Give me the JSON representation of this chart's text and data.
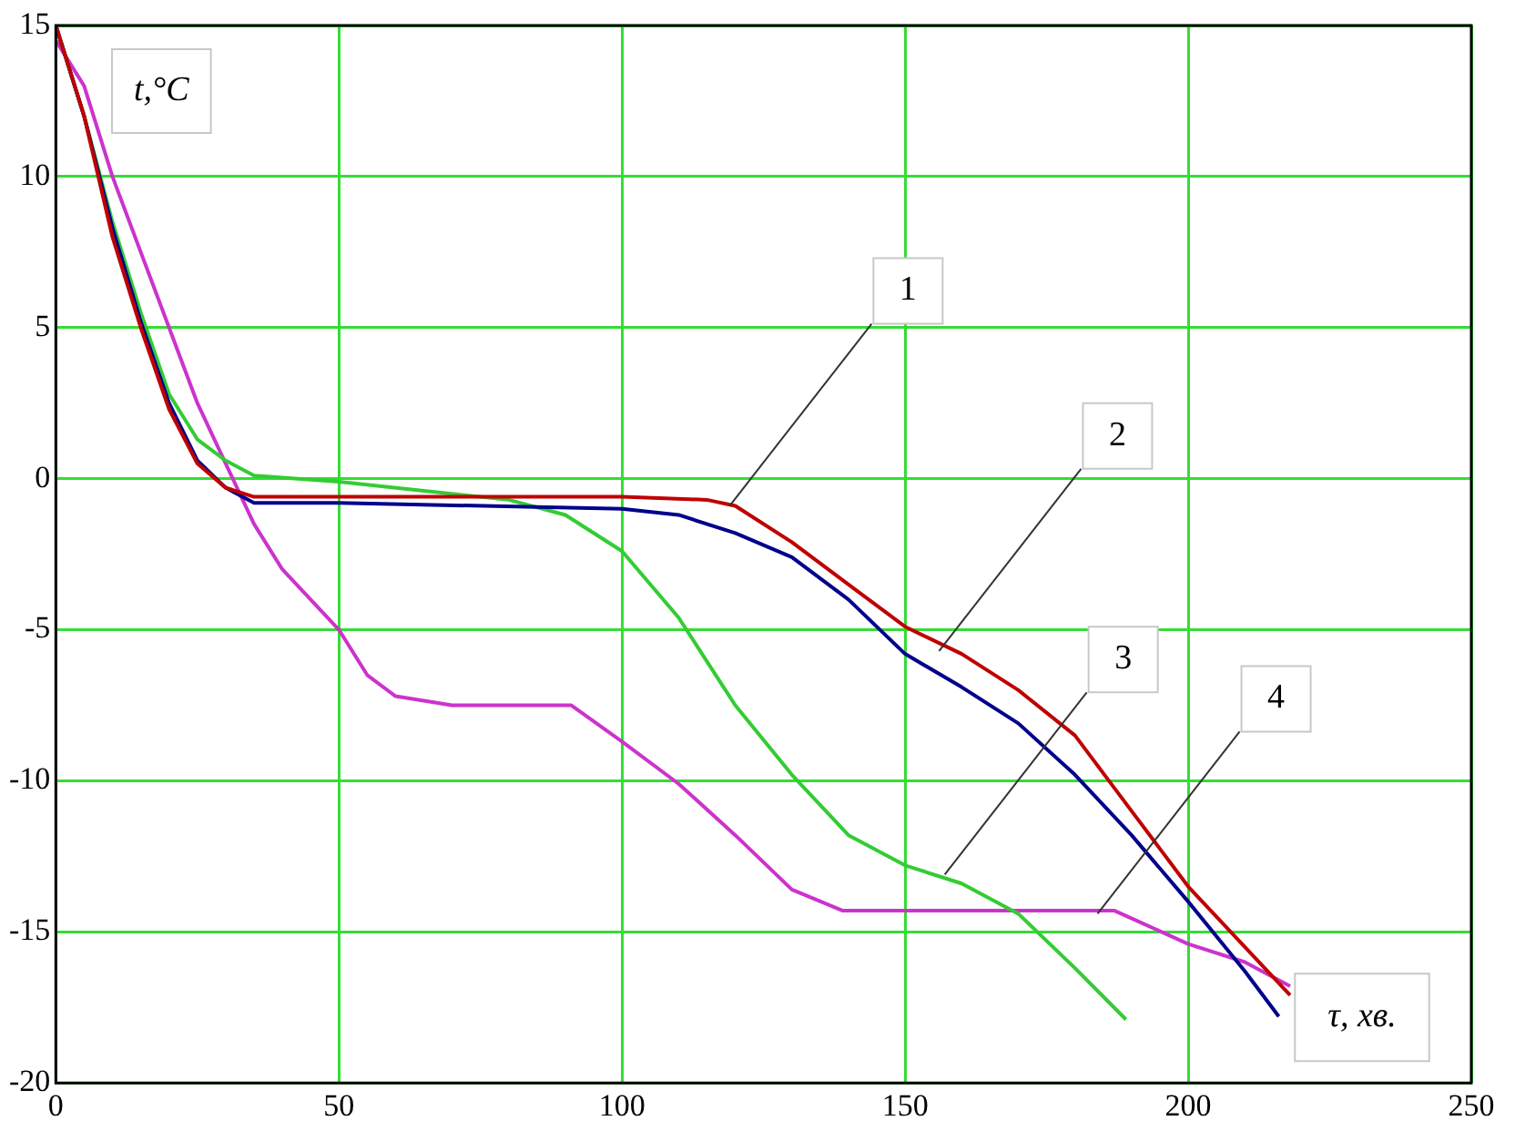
{
  "chart_data": {
    "type": "line",
    "xlabel": "τ, хв.",
    "ylabel": "t,°C",
    "xlim": [
      0,
      250
    ],
    "ylim": [
      -20,
      15
    ],
    "xticks": [
      0,
      50,
      100,
      150,
      200,
      250
    ],
    "yticks": [
      -20,
      -15,
      -10,
      -5,
      0,
      5,
      10,
      15
    ],
    "grid": true,
    "legend": false,
    "marker": "none",
    "line_style": "solid",
    "series": [
      {
        "color": "#c00000",
        "x": [
          0,
          5,
          10,
          15,
          20,
          25,
          30,
          35,
          50,
          100,
          115,
          120,
          130,
          140,
          150,
          160,
          170,
          180,
          190,
          200,
          210,
          218
        ],
        "values": [
          15,
          12,
          8,
          5,
          2.3,
          0.5,
          -0.3,
          -0.6,
          -0.6,
          -0.6,
          -0.7,
          -0.9,
          -2.1,
          -3.5,
          -4.9,
          -5.8,
          -7,
          -8.5,
          -11,
          -13.5,
          -15.5,
          -17.1
        ]
      },
      {
        "color": "#00008b",
        "x": [
          0,
          5,
          10,
          15,
          20,
          25,
          30,
          35,
          50,
          100,
          110,
          120,
          130,
          140,
          150,
          160,
          170,
          180,
          190,
          200,
          210,
          216
        ],
        "values": [
          15,
          12,
          8.3,
          5.2,
          2.5,
          0.6,
          -0.3,
          -0.8,
          -0.8,
          -1,
          -1.2,
          -1.8,
          -2.6,
          -4,
          -5.8,
          -6.9,
          -8.1,
          -9.8,
          -11.8,
          -14,
          -16.3,
          -17.8
        ]
      },
      {
        "color": "#33cc33",
        "x": [
          0,
          5,
          10,
          15,
          20,
          25,
          30,
          35,
          50,
          80,
          90,
          100,
          110,
          120,
          130,
          140,
          150,
          160,
          170,
          180,
          189
        ],
        "values": [
          15,
          12,
          8.5,
          5.5,
          2.8,
          1.3,
          0.6,
          0.1,
          -0.1,
          -0.7,
          -1.2,
          -2.4,
          -4.6,
          -7.5,
          -9.8,
          -11.8,
          -12.8,
          -13.4,
          -14.4,
          -16.2,
          -17.9
        ]
      },
      {
        "color": "#cc33cc",
        "x": [
          0,
          5,
          10,
          15,
          20,
          25,
          30,
          35,
          40,
          50,
          55,
          60,
          70,
          82,
          91,
          100,
          110,
          120,
          130,
          139,
          187,
          200,
          210,
          218
        ],
        "values": [
          14.5,
          13,
          10,
          7.5,
          5,
          2.5,
          0.5,
          -1.5,
          -3,
          -5,
          -6.5,
          -7.2,
          -7.5,
          -7.5,
          -7.5,
          -8.7,
          -10.1,
          -11.8,
          -13.6,
          -14.3,
          -14.3,
          -15.4,
          -16,
          -16.8
        ]
      }
    ],
    "annotations": [
      {
        "text": "1",
        "x": 119,
        "y": -0.9
      },
      {
        "text": "2",
        "x": 156,
        "y": -5.7
      },
      {
        "text": "3",
        "x": 157,
        "y": -13.1
      },
      {
        "text": "4",
        "x": 184,
        "y": -14.4
      }
    ]
  }
}
